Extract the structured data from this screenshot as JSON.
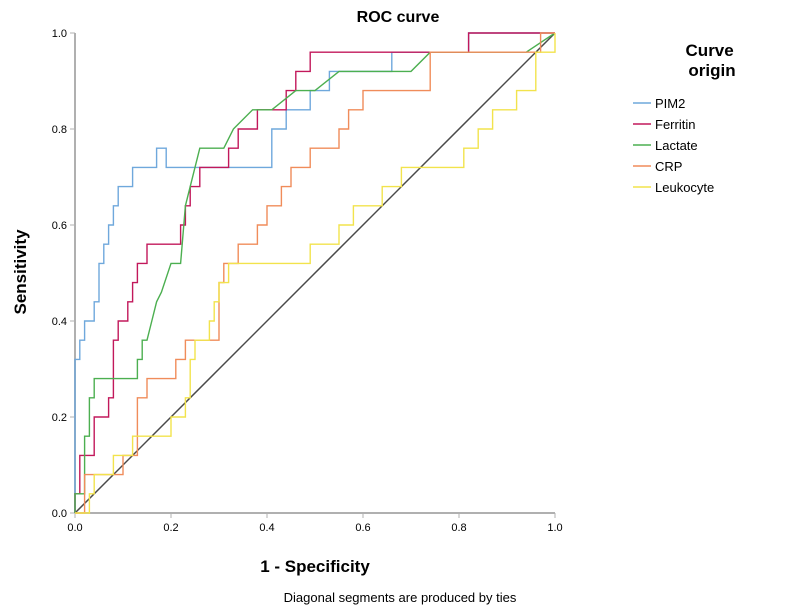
{
  "chart_data": {
    "type": "line",
    "title": "ROC curve",
    "xlabel": "1 - Specificity",
    "ylabel": "Sensitivity",
    "xlim": [
      0.0,
      1.0
    ],
    "ylim": [
      0.0,
      1.0
    ],
    "xticks": [
      "0.0",
      "0.2",
      "0.4",
      "0.6",
      "0.8",
      "1.0"
    ],
    "yticks": [
      "0.0",
      "0.2",
      "0.4",
      "0.6",
      "0.8",
      "1.0"
    ],
    "xtick_values": [
      0,
      0.2,
      0.4,
      0.6,
      0.8,
      1.0
    ],
    "ytick_values": [
      0,
      0.2,
      0.4,
      0.6,
      0.8,
      1.0
    ],
    "grid": false,
    "legend_title": "Curve origin",
    "legend_position": "right",
    "footnote": "Diagonal segments are produced by ties",
    "reference_line": {
      "color": "#4a4a4a",
      "points": [
        [
          0,
          0
        ],
        [
          1,
          1
        ]
      ]
    },
    "series": [
      {
        "name": "PIM2",
        "color": "#6fa8dc",
        "points": [
          [
            0,
            0
          ],
          [
            0,
            0.32
          ],
          [
            0.01,
            0.32
          ],
          [
            0.01,
            0.36
          ],
          [
            0.02,
            0.36
          ],
          [
            0.02,
            0.4
          ],
          [
            0.04,
            0.4
          ],
          [
            0.04,
            0.44
          ],
          [
            0.05,
            0.44
          ],
          [
            0.05,
            0.52
          ],
          [
            0.06,
            0.52
          ],
          [
            0.06,
            0.56
          ],
          [
            0.07,
            0.56
          ],
          [
            0.07,
            0.6
          ],
          [
            0.08,
            0.6
          ],
          [
            0.08,
            0.64
          ],
          [
            0.09,
            0.64
          ],
          [
            0.09,
            0.68
          ],
          [
            0.12,
            0.68
          ],
          [
            0.12,
            0.72
          ],
          [
            0.17,
            0.72
          ],
          [
            0.17,
            0.76
          ],
          [
            0.19,
            0.76
          ],
          [
            0.19,
            0.72
          ],
          [
            0.41,
            0.72
          ],
          [
            0.41,
            0.8
          ],
          [
            0.44,
            0.8
          ],
          [
            0.44,
            0.84
          ],
          [
            0.49,
            0.84
          ],
          [
            0.49,
            0.88
          ],
          [
            0.53,
            0.88
          ],
          [
            0.53,
            0.92
          ],
          [
            0.66,
            0.92
          ],
          [
            0.66,
            0.96
          ],
          [
            0.82,
            0.96
          ],
          [
            0.82,
            1.0
          ],
          [
            1.0,
            1.0
          ]
        ]
      },
      {
        "name": "Ferritin",
        "color": "#c2185b",
        "points": [
          [
            0,
            0
          ],
          [
            0,
            0.04
          ],
          [
            0.01,
            0.04
          ],
          [
            0.01,
            0.12
          ],
          [
            0.04,
            0.12
          ],
          [
            0.04,
            0.2
          ],
          [
            0.07,
            0.2
          ],
          [
            0.07,
            0.24
          ],
          [
            0.08,
            0.24
          ],
          [
            0.08,
            0.36
          ],
          [
            0.09,
            0.36
          ],
          [
            0.09,
            0.4
          ],
          [
            0.11,
            0.4
          ],
          [
            0.11,
            0.44
          ],
          [
            0.12,
            0.44
          ],
          [
            0.12,
            0.48
          ],
          [
            0.13,
            0.48
          ],
          [
            0.13,
            0.52
          ],
          [
            0.15,
            0.52
          ],
          [
            0.15,
            0.56
          ],
          [
            0.22,
            0.56
          ],
          [
            0.22,
            0.6
          ],
          [
            0.23,
            0.6
          ],
          [
            0.23,
            0.64
          ],
          [
            0.24,
            0.64
          ],
          [
            0.24,
            0.68
          ],
          [
            0.26,
            0.68
          ],
          [
            0.26,
            0.72
          ],
          [
            0.32,
            0.72
          ],
          [
            0.32,
            0.76
          ],
          [
            0.34,
            0.76
          ],
          [
            0.34,
            0.8
          ],
          [
            0.38,
            0.8
          ],
          [
            0.38,
            0.84
          ],
          [
            0.44,
            0.84
          ],
          [
            0.44,
            0.88
          ],
          [
            0.46,
            0.88
          ],
          [
            0.46,
            0.92
          ],
          [
            0.49,
            0.92
          ],
          [
            0.49,
            0.96
          ],
          [
            0.82,
            0.96
          ],
          [
            0.82,
            1.0
          ],
          [
            1.0,
            1.0
          ]
        ]
      },
      {
        "name": "Lactate",
        "color": "#4caf50",
        "points": [
          [
            0,
            0
          ],
          [
            0,
            0.04
          ],
          [
            0.02,
            0.04
          ],
          [
            0.02,
            0.16
          ],
          [
            0.03,
            0.16
          ],
          [
            0.03,
            0.24
          ],
          [
            0.04,
            0.24
          ],
          [
            0.04,
            0.28
          ],
          [
            0.13,
            0.28
          ],
          [
            0.13,
            0.32
          ],
          [
            0.14,
            0.32
          ],
          [
            0.14,
            0.36
          ],
          [
            0.15,
            0.36
          ],
          [
            0.16,
            0.4
          ],
          [
            0.17,
            0.44
          ],
          [
            0.18,
            0.46
          ],
          [
            0.2,
            0.52
          ],
          [
            0.22,
            0.52
          ],
          [
            0.23,
            0.64
          ],
          [
            0.24,
            0.68
          ],
          [
            0.26,
            0.76
          ],
          [
            0.31,
            0.76
          ],
          [
            0.33,
            0.8
          ],
          [
            0.37,
            0.84
          ],
          [
            0.41,
            0.84
          ],
          [
            0.46,
            0.88
          ],
          [
            0.5,
            0.88
          ],
          [
            0.55,
            0.92
          ],
          [
            0.7,
            0.92
          ],
          [
            0.74,
            0.96
          ],
          [
            0.94,
            0.96
          ],
          [
            1.0,
            1.0
          ]
        ]
      },
      {
        "name": "CRP",
        "color": "#f08c5a",
        "points": [
          [
            0,
            0
          ],
          [
            0.02,
            0
          ],
          [
            0.02,
            0.08
          ],
          [
            0.1,
            0.08
          ],
          [
            0.1,
            0.12
          ],
          [
            0.13,
            0.12
          ],
          [
            0.13,
            0.24
          ],
          [
            0.15,
            0.24
          ],
          [
            0.15,
            0.28
          ],
          [
            0.21,
            0.28
          ],
          [
            0.21,
            0.32
          ],
          [
            0.23,
            0.32
          ],
          [
            0.23,
            0.36
          ],
          [
            0.3,
            0.36
          ],
          [
            0.3,
            0.48
          ],
          [
            0.31,
            0.48
          ],
          [
            0.31,
            0.52
          ],
          [
            0.34,
            0.52
          ],
          [
            0.34,
            0.56
          ],
          [
            0.38,
            0.56
          ],
          [
            0.38,
            0.6
          ],
          [
            0.4,
            0.6
          ],
          [
            0.4,
            0.64
          ],
          [
            0.43,
            0.64
          ],
          [
            0.43,
            0.68
          ],
          [
            0.45,
            0.68
          ],
          [
            0.45,
            0.72
          ],
          [
            0.49,
            0.72
          ],
          [
            0.49,
            0.76
          ],
          [
            0.55,
            0.76
          ],
          [
            0.55,
            0.8
          ],
          [
            0.57,
            0.8
          ],
          [
            0.57,
            0.84
          ],
          [
            0.6,
            0.84
          ],
          [
            0.6,
            0.88
          ],
          [
            0.74,
            0.88
          ],
          [
            0.74,
            0.96
          ],
          [
            0.94,
            0.96
          ],
          [
            0.97,
            0.96
          ],
          [
            0.97,
            1.0
          ],
          [
            1.0,
            1.0
          ]
        ]
      },
      {
        "name": "Leukocyte",
        "color": "#f2e34c",
        "points": [
          [
            0,
            0
          ],
          [
            0.03,
            0
          ],
          [
            0.03,
            0.04
          ],
          [
            0.04,
            0.04
          ],
          [
            0.04,
            0.08
          ],
          [
            0.08,
            0.08
          ],
          [
            0.08,
            0.12
          ],
          [
            0.12,
            0.12
          ],
          [
            0.12,
            0.16
          ],
          [
            0.2,
            0.16
          ],
          [
            0.2,
            0.2
          ],
          [
            0.23,
            0.2
          ],
          [
            0.23,
            0.24
          ],
          [
            0.24,
            0.24
          ],
          [
            0.24,
            0.32
          ],
          [
            0.25,
            0.32
          ],
          [
            0.25,
            0.36
          ],
          [
            0.28,
            0.36
          ],
          [
            0.28,
            0.4
          ],
          [
            0.29,
            0.4
          ],
          [
            0.29,
            0.44
          ],
          [
            0.3,
            0.44
          ],
          [
            0.3,
            0.48
          ],
          [
            0.32,
            0.48
          ],
          [
            0.32,
            0.52
          ],
          [
            0.49,
            0.52
          ],
          [
            0.49,
            0.56
          ],
          [
            0.55,
            0.56
          ],
          [
            0.55,
            0.6
          ],
          [
            0.58,
            0.6
          ],
          [
            0.58,
            0.64
          ],
          [
            0.64,
            0.64
          ],
          [
            0.64,
            0.68
          ],
          [
            0.68,
            0.68
          ],
          [
            0.68,
            0.72
          ],
          [
            0.81,
            0.72
          ],
          [
            0.81,
            0.76
          ],
          [
            0.84,
            0.76
          ],
          [
            0.84,
            0.8
          ],
          [
            0.87,
            0.8
          ],
          [
            0.87,
            0.84
          ],
          [
            0.92,
            0.84
          ],
          [
            0.92,
            0.88
          ],
          [
            0.96,
            0.88
          ],
          [
            0.96,
            0.96
          ],
          [
            1.0,
            0.96
          ],
          [
            1.0,
            1.0
          ]
        ]
      }
    ]
  }
}
